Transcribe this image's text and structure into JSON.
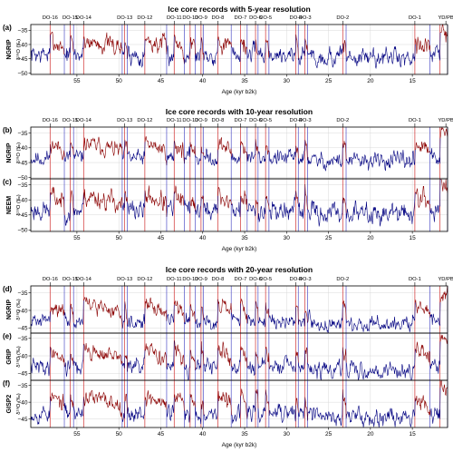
{
  "chart_data": {
    "type": "line",
    "xlim": [
      60.5,
      10.8
    ],
    "colors": {
      "stadial": "#000080",
      "interstadial": "#8B0000",
      "marker_red": "#d03030",
      "marker_blue": "#5050c8",
      "frame": "#000000",
      "grid": "#d8d8d8"
    },
    "events": [
      {
        "label": "DO-16",
        "start": 58.2,
        "end": 56.5
      },
      {
        "label": "DO-15",
        "start": 55.8,
        "end": 55.4
      },
      {
        "label": "DO-14",
        "start": 54.2,
        "end": 49.6
      },
      {
        "label": "DO-13",
        "start": 49.3,
        "end": 49.0
      },
      {
        "label": "DO-12",
        "start": 46.9,
        "end": 44.3
      },
      {
        "label": "DO-11",
        "start": 43.4,
        "end": 42.2
      },
      {
        "label": "DO-10",
        "start": 41.5,
        "end": 40.9
      },
      {
        "label": "DO-9",
        "start": 40.2,
        "end": 39.9
      },
      {
        "label": "DO-8",
        "start": 38.2,
        "end": 36.6
      },
      {
        "label": "DO-7",
        "start": 35.5,
        "end": 34.7
      },
      {
        "label": "DO-6",
        "start": 33.7,
        "end": 33.4
      },
      {
        "label": "DO-5",
        "start": 32.5,
        "end": 32.1
      },
      {
        "label": "DO-4",
        "start": 28.9,
        "end": 28.6
      },
      {
        "label": "DO-3",
        "start": 27.8,
        "end": 27.5
      },
      {
        "label": "DO-2",
        "start": 23.3,
        "end": 22.9
      },
      {
        "label": "DO-1",
        "start": 14.7,
        "end": 12.9
      },
      {
        "label": "YD/PB",
        "start": 11.7,
        "end": 10.8
      }
    ],
    "groups": [
      {
        "title": "Ice core records with 5-year resolution",
        "xlabel": "Age (kyr b2k)",
        "panels": [
          {
            "letter": "(a)",
            "core": "NGRIP",
            "ylabel": "δ¹⁸O (‰)",
            "ylim": [
              -50.5,
              -33
            ],
            "yticks": [
              -35,
              -40,
              -45,
              -50
            ],
            "showLabels": true,
            "showXticks": true,
            "noise": 1.6,
            "seed": 7
          }
        ]
      },
      {
        "title": "Ice core records with 10-year resolution",
        "xlabel": "Age (kyr b2k)",
        "panels": [
          {
            "letter": "(b)",
            "core": "NGRIP",
            "ylabel": "δ¹⁸O (‰)",
            "ylim": [
              -50.5,
              -33
            ],
            "yticks": [
              -35,
              -40,
              -45,
              -50
            ],
            "showLabels": true,
            "showXticks": false,
            "noise": 1.3,
            "seed": 11
          },
          {
            "letter": "(c)",
            "core": "NEEM",
            "ylabel": "δ¹⁸O (‰)",
            "ylim": [
              -50.5,
              -33
            ],
            "yticks": [
              -35,
              -40,
              -45,
              -50
            ],
            "showLabels": false,
            "showXticks": true,
            "noise": 1.6,
            "seed": 23
          }
        ]
      },
      {
        "title": "Ice core records with 20-year resolution",
        "xlabel": "Age (kyr b2k)",
        "panels": [
          {
            "letter": "(d)",
            "core": "NGRIP",
            "ylabel": "δ¹⁸O (‰)",
            "ylim": [
              -46.5,
              -33
            ],
            "yticks": [
              -35,
              -40,
              -45
            ],
            "showLabels": true,
            "showXticks": false,
            "noise": 1.0,
            "seed": 31
          },
          {
            "letter": "(e)",
            "core": "GRIP",
            "ylabel": "δ¹⁸O (‰)",
            "ylim": [
              -47,
              -33.5
            ],
            "yticks": [
              -35,
              -40,
              -45
            ],
            "showLabels": false,
            "showXticks": false,
            "noise": 1.1,
            "seed": 41
          },
          {
            "letter": "(f)",
            "core": "GISP2",
            "ylabel": "δ¹⁸O (‰)",
            "ylim": [
              -47.5,
              -33.5
            ],
            "yticks": [
              -35,
              -40,
              -45
            ],
            "showLabels": false,
            "showXticks": true,
            "noise": 1.2,
            "seed": 53
          }
        ]
      }
    ],
    "xticks": [
      55,
      50,
      45,
      40,
      35,
      30,
      25,
      20,
      15
    ],
    "baseline": {
      "stadial": -43.5,
      "interstadial": -38.5,
      "holocene": -35.5
    }
  }
}
